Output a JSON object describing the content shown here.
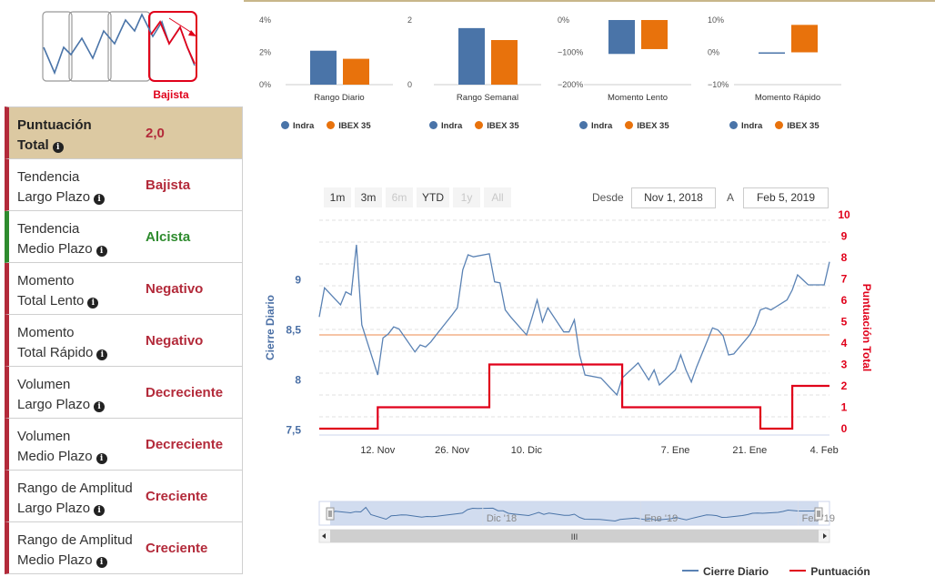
{
  "signal": {
    "label": "Bajista",
    "color_red": "#e0001a",
    "icon_name": "downtrend-icon"
  },
  "scorecard": [
    {
      "label1": "Puntuación",
      "label2": "Total",
      "value": "2,0",
      "status": "red"
    },
    {
      "label1": "Tendencia",
      "label2": "Largo Plazo",
      "value": "Bajista",
      "status": "red"
    },
    {
      "label1": "Tendencia",
      "label2": "Medio Plazo",
      "value": "Alcista",
      "status": "green"
    },
    {
      "label1": "Momento",
      "label2": "Total Lento",
      "value": "Negativo",
      "status": "red"
    },
    {
      "label1": "Momento",
      "label2": "Total Rápido",
      "value": "Negativo",
      "status": "red"
    },
    {
      "label1": "Volumen",
      "label2": "Largo Plazo",
      "value": "Decreciente",
      "status": "red"
    },
    {
      "label1": "Volumen",
      "label2": "Medio Plazo",
      "value": "Decreciente",
      "status": "red"
    },
    {
      "label1": "Rango de Amplitud",
      "label2": "Largo Plazo",
      "value": "Creciente",
      "status": "red"
    },
    {
      "label1": "Rango de Amplitud",
      "label2": "Medio Plazo",
      "value": "Creciente",
      "status": "red"
    }
  ],
  "colors": {
    "indra": "#4a74a8",
    "ibex": "#e8720c",
    "score_line": "#e0001a",
    "close_line": "#5a82b4",
    "ref_line": "#f0a070",
    "red_status": "#b32a3a",
    "green_status": "#2e8b2e"
  },
  "mini_legend": {
    "a": "Indra",
    "b": "IBEX 35"
  },
  "range_selector": {
    "buttons": [
      "1m",
      "3m",
      "6m",
      "YTD",
      "1y",
      "All"
    ],
    "disabled": [
      false,
      false,
      true,
      false,
      true,
      true
    ],
    "from_label": "Desde",
    "from_value": "Nov 1, 2018",
    "to_label": "A",
    "to_value": "Feb 5, 2019"
  },
  "navigator": {
    "labels": [
      "Dic '18",
      "Ene '19",
      "Feb '19"
    ],
    "scroll_grip": "III"
  },
  "main_legend": {
    "close": "Cierre Diario",
    "score": "Puntuación"
  },
  "chart_data": [
    {
      "type": "bar",
      "title": "Rango Diario",
      "series": [
        {
          "name": "Indra",
          "values": [
            2.1
          ]
        },
        {
          "name": "IBEX 35",
          "values": [
            1.6
          ]
        }
      ],
      "yticks": [
        "4%",
        "2%",
        "0%"
      ],
      "ylim": [
        0,
        4
      ]
    },
    {
      "type": "bar",
      "title": "Rango Semanal",
      "series": [
        {
          "name": "Indra",
          "values": [
            1.75
          ]
        },
        {
          "name": "IBEX 35",
          "values": [
            1.38
          ]
        }
      ],
      "yticks": [
        "2",
        "0"
      ],
      "ylim": [
        0,
        2
      ]
    },
    {
      "type": "bar",
      "title": "Momento Lento",
      "series": [
        {
          "name": "Indra",
          "values": [
            -105
          ]
        },
        {
          "name": "IBEX 35",
          "values": [
            -90
          ]
        }
      ],
      "yticks": [
        "0%",
        "−100%",
        "−200%"
      ],
      "ylim": [
        -200,
        0
      ]
    },
    {
      "type": "bar",
      "title": "Momento Rápido",
      "series": [
        {
          "name": "Indra",
          "values": [
            -0.3
          ]
        },
        {
          "name": "IBEX 35",
          "values": [
            8.5
          ]
        }
      ],
      "yticks": [
        "10%",
        "0%",
        "−10%"
      ],
      "ylim": [
        -10,
        10
      ]
    },
    {
      "type": "line",
      "x_ticks": [
        "12. Nov",
        "26. Nov",
        "10. Dic",
        "7. Ene",
        "21. Ene",
        "4. Feb"
      ],
      "y_left_label": "Cierre Diario",
      "y_left_ticks": [
        "9",
        "8,5",
        "8",
        "7,5"
      ],
      "y_left_range": [
        7.45,
        9.65
      ],
      "y_right_label": "Puntuación Total",
      "y_right_ticks": [
        "10",
        "9",
        "8",
        "7",
        "6",
        "5",
        "4",
        "3",
        "2",
        "1",
        "0"
      ],
      "y_right_range": [
        -0.3,
        10
      ],
      "reference_line_left": 8.45,
      "series": [
        {
          "name": "Cierre Diario",
          "axis": "left",
          "x": [
            "2018-11-01",
            "2018-11-02",
            "2018-11-05",
            "2018-11-06",
            "2018-11-07",
            "2018-11-08",
            "2018-11-09",
            "2018-11-12",
            "2018-11-13",
            "2018-11-14",
            "2018-11-15",
            "2018-11-16",
            "2018-11-19",
            "2018-11-20",
            "2018-11-21",
            "2018-11-22",
            "2018-11-23",
            "2018-11-26",
            "2018-11-27",
            "2018-11-28",
            "2018-11-29",
            "2018-11-30",
            "2018-12-03",
            "2018-12-04",
            "2018-12-05",
            "2018-12-06",
            "2018-12-07",
            "2018-12-10",
            "2018-12-11",
            "2018-12-12",
            "2018-12-13",
            "2018-12-14",
            "2018-12-17",
            "2018-12-18",
            "2018-12-19",
            "2018-12-20",
            "2018-12-21",
            "2018-12-24",
            "2018-12-27",
            "2018-12-28",
            "2018-12-31",
            "2019-01-02",
            "2019-01-03",
            "2019-01-04",
            "2019-01-07",
            "2019-01-08",
            "2019-01-09",
            "2019-01-10",
            "2019-01-11",
            "2019-01-14",
            "2019-01-15",
            "2019-01-16",
            "2019-01-17",
            "2019-01-18",
            "2019-01-21",
            "2019-01-22",
            "2019-01-23",
            "2019-01-24",
            "2019-01-25",
            "2019-01-28",
            "2019-01-29",
            "2019-01-30",
            "2019-01-31",
            "2019-02-01",
            "2019-02-04",
            "2019-02-05"
          ],
          "values": [
            8.63,
            8.92,
            8.75,
            8.88,
            8.85,
            9.35,
            8.55,
            8.05,
            8.42,
            8.46,
            8.53,
            8.51,
            8.28,
            8.35,
            8.33,
            8.38,
            8.45,
            8.65,
            8.72,
            9.1,
            9.25,
            9.23,
            9.26,
            8.98,
            8.97,
            8.7,
            8.63,
            8.45,
            8.62,
            8.8,
            8.58,
            8.72,
            8.48,
            8.48,
            8.6,
            8.25,
            8.05,
            8.02,
            7.85,
            8.02,
            8.17,
            8.0,
            8.1,
            7.95,
            8.1,
            8.25,
            8.1,
            7.98,
            8.13,
            8.52,
            8.5,
            8.44,
            8.25,
            8.26,
            8.45,
            8.55,
            8.7,
            8.72,
            8.7,
            8.8,
            8.9,
            9.05,
            9.0,
            8.95,
            8.95,
            9.18
          ]
        },
        {
          "name": "Puntuación",
          "axis": "right",
          "steps": [
            {
              "from": "2018-11-01",
              "to": "2018-11-12",
              "value": 0
            },
            {
              "from": "2018-11-12",
              "to": "2018-12-03",
              "value": 1
            },
            {
              "from": "2018-12-03",
              "to": "2018-12-28",
              "value": 3
            },
            {
              "from": "2018-12-28",
              "to": "2019-01-23",
              "value": 1
            },
            {
              "from": "2019-01-23",
              "to": "2019-01-29",
              "value": 0
            },
            {
              "from": "2019-01-29",
              "to": "2019-02-05",
              "value": 2
            }
          ]
        }
      ]
    }
  ]
}
